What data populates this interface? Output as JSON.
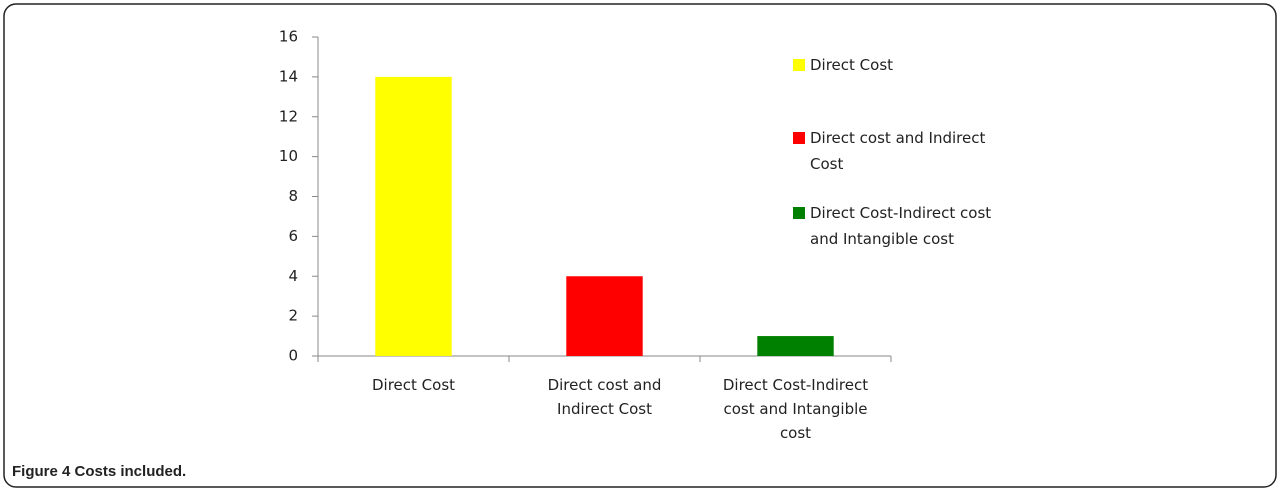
{
  "chart_data": {
    "type": "bar",
    "categories": [
      "Direct Cost",
      "Direct cost and Indirect Cost",
      "Direct Cost-Indirect cost and Intangible cost"
    ],
    "values": [
      14,
      4,
      1
    ],
    "colors": [
      "#ffff00",
      "#ff0000",
      "#008000"
    ],
    "ylim": [
      0,
      16
    ],
    "yticks": [
      0,
      2,
      4,
      6,
      8,
      10,
      12,
      14,
      16
    ],
    "legend": "right",
    "caption": "Figure 4 Costs included."
  }
}
